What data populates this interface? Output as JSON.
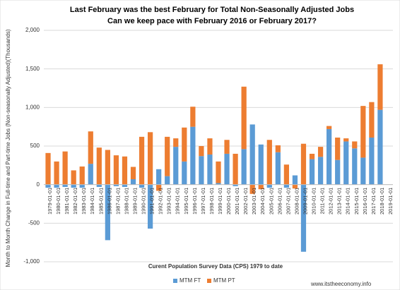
{
  "chart_data": {
    "type": "bar",
    "stacked": true,
    "title": "Last February was the best February for Total Non-Seasonally Adjusted Jobs",
    "subtitle": "Can we keep pace with February 2016 or February 2017?",
    "y_label": "Month to Month Change in Full-time and Part-time Jobs (Non-seasonally Adjusted)(Thousands)",
    "x_label": "Curent Population Survey Data (CPS) 1979 to date",
    "annotation": "www.itstheeconomy.info",
    "categories": [
      "1979-01-01",
      "1980-01-01",
      "1981-01-01",
      "1982-01-01",
      "1983-01-01",
      "1984-01-01",
      "1985-01-01",
      "1986-01-01",
      "1987-01-01",
      "1988-01-01",
      "1989-01-01",
      "1990-01-01",
      "1991-01-01",
      "1992-01-01",
      "1993-01-01",
      "1994-01-01",
      "1995-01-01",
      "1996-01-01",
      "1997-01-01",
      "1998-01-01",
      "1999-01-01",
      "2000-01-01",
      "2001-01-01",
      "2002-01-01",
      "2003-01-01",
      "2004-01-01",
      "2005-01-01",
      "2006-01-01",
      "2007-01-01",
      "2008-01-01",
      "2009-01-01",
      "2010-01-01",
      "2011-01-01",
      "2012-01-01",
      "2013-01-01",
      "2014-01-01",
      "2015-01-01",
      "2016-01-01",
      "2017-01-01",
      "2018-01-01",
      "2019-01-01"
    ],
    "series": [
      {
        "name": "MTM FT",
        "color": "#5b9bd5",
        "values": [
          -40,
          -40,
          -30,
          -40,
          -40,
          270,
          -30,
          -720,
          -20,
          -30,
          70,
          -40,
          -570,
          200,
          110,
          490,
          300,
          750,
          370,
          390,
          20,
          400,
          -20,
          460,
          780,
          520,
          -40,
          420,
          -40,
          120,
          -870,
          330,
          360,
          720,
          320,
          560,
          470,
          350,
          610,
          970,
          null
        ]
      },
      {
        "name": "MTM PT",
        "color": "#ed7d31",
        "values": [
          410,
          300,
          430,
          185,
          235,
          420,
          480,
          450,
          380,
          365,
          160,
          620,
          680,
          -80,
          510,
          110,
          440,
          260,
          130,
          210,
          280,
          180,
          400,
          810,
          -120,
          -60,
          580,
          90,
          260,
          -50,
          530,
          70,
          130,
          40,
          290,
          40,
          90,
          670,
          460,
          590,
          null
        ]
      }
    ],
    "ylim": [
      -1000,
      2000
    ],
    "yticks": [
      {
        "value": -1000,
        "label": "-1,000"
      },
      -500,
      0,
      500,
      {
        "value": 1000,
        "label": "1,000"
      },
      {
        "value": 1500,
        "label": "1,500"
      },
      {
        "value": 2000,
        "label": "2,000"
      }
    ],
    "grid": true,
    "legend": "bottom"
  }
}
